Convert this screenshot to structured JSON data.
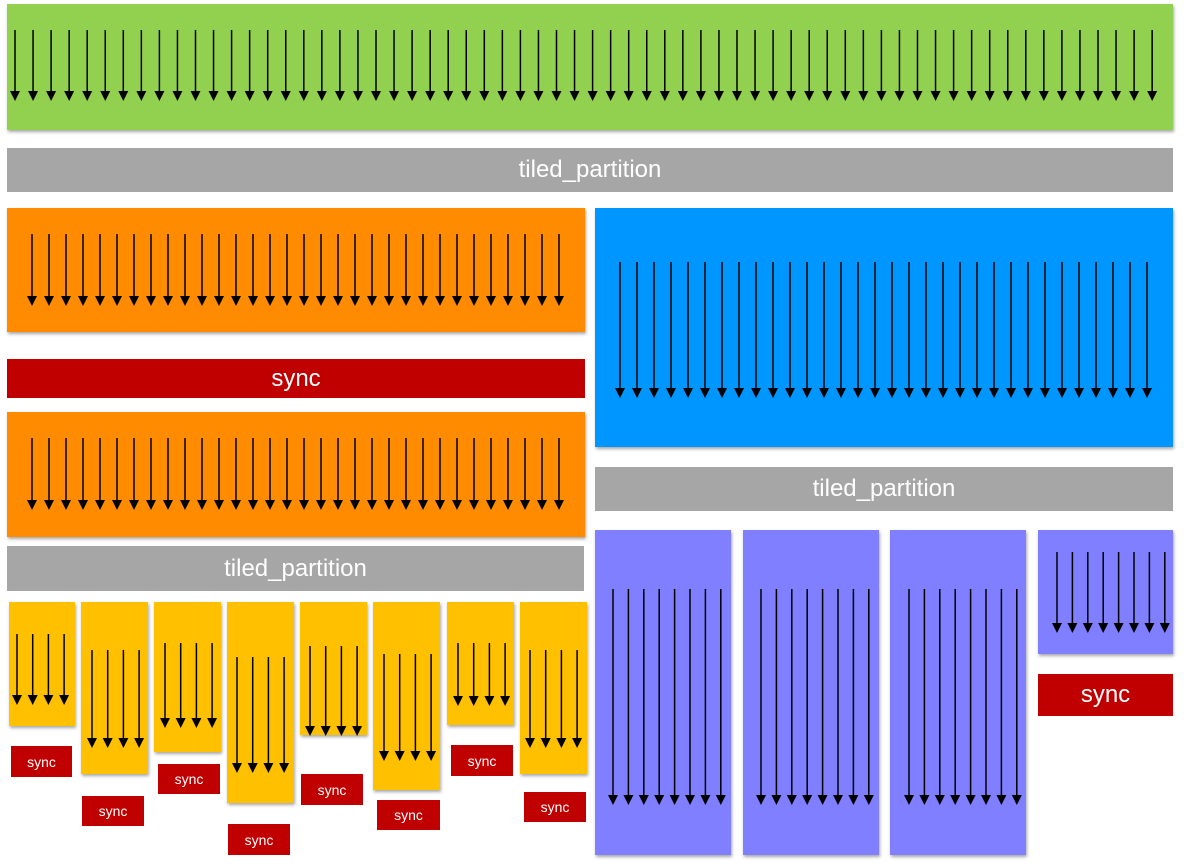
{
  "colors": {
    "grid": "#92d050",
    "partition_bar": "#a6a6a6",
    "tile_32": "#ff8c00",
    "tile_32_alt": "#0096ff",
    "tile_4": "#ffc000",
    "tile_8": "#7f7fff",
    "sync": "#c00000",
    "arrow": "#000000"
  },
  "labels": {
    "tiled_partition_top": "tiled_partition",
    "tiled_partition_left": "tiled_partition",
    "tiled_partition_right": "tiled_partition",
    "sync_left": "sync",
    "sync_right": "sync",
    "sync_small": [
      "sync",
      "sync",
      "sync",
      "sync",
      "sync",
      "sync",
      "sync",
      "sync"
    ]
  },
  "thread_counts": {
    "grid": 64,
    "orange_tile": 32,
    "blue_tile": 32,
    "yellow_tile": 4,
    "purple_tile": 8
  }
}
